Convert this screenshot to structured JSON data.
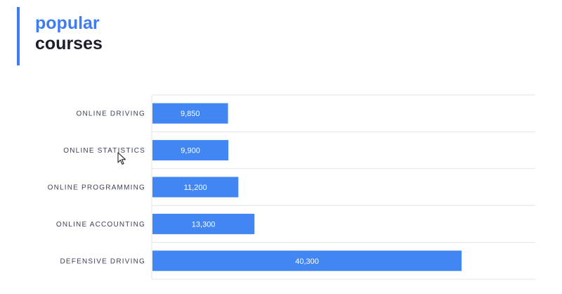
{
  "header": {
    "title_line_1": "popular",
    "title_line_2": "courses"
  },
  "colors": {
    "accent": "#3d7cf2",
    "bar": "#4286f4",
    "title_dark": "#1a1e2c",
    "label": "#3a4257",
    "grid": "#e2e4e8"
  },
  "chart_data": {
    "type": "bar",
    "orientation": "horizontal",
    "title": "popular courses",
    "categories": [
      "ONLINE DRIVING",
      "ONLINE STATISTICS",
      "ONLINE PROGRAMMING",
      "ONLINE ACCOUNTING",
      "DEFENSIVE DRIVING"
    ],
    "values": [
      9850,
      9900,
      11200,
      13300,
      40300
    ],
    "value_labels": [
      "9,850",
      "9,900",
      "11,200",
      "13,300",
      "40,300"
    ],
    "xlim": [
      0,
      50000
    ],
    "grid": true,
    "legend": "none"
  }
}
